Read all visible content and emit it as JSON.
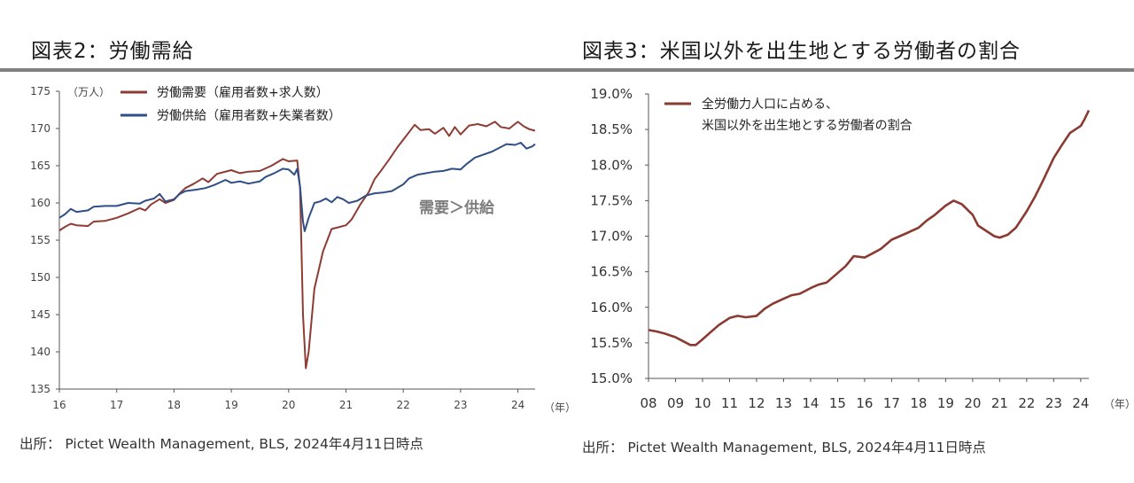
{
  "titles": {
    "left": "図表2：労働需給",
    "right": "図表3：米国以外を出生地とする労働者の割合"
  },
  "sources": {
    "left": "出所： Pictet Wealth Management, BLS, 2024年4月11日時点",
    "right": "出所： Pictet Wealth Management, BLS, 2024年4月11日時点"
  },
  "colors": {
    "demand": "#8e3b33",
    "supply": "#2f4f86",
    "share": "#8a3a31",
    "rule": "#808080"
  },
  "chart_data": [
    {
      "type": "line",
      "title": "図表2：労働需給",
      "unit_label": "（万人）",
      "x_unit_label": "（年）",
      "xlim": [
        2016,
        2024.3
      ],
      "x_ticks": [
        2016,
        2017,
        2018,
        2019,
        2020,
        2021,
        2022,
        2023,
        2024
      ],
      "x_tick_labels": [
        "16",
        "17",
        "18",
        "19",
        "20",
        "21",
        "22",
        "23",
        "24"
      ],
      "ylim": [
        135,
        175
      ],
      "y_ticks": [
        135,
        140,
        145,
        150,
        155,
        160,
        165,
        170,
        175
      ],
      "y_tick_labels": [
        "135",
        "140",
        "145",
        "150",
        "155",
        "160",
        "165",
        "170",
        "175"
      ],
      "annotation": "需要＞供給",
      "legend_position": "top-left",
      "series": [
        {
          "name": "労働需要（雇用者数+求人数）",
          "color": "#8e3b33",
          "points": [
            [
              2016.0,
              156.3
            ],
            [
              2016.1,
              156.8
            ],
            [
              2016.2,
              157.2
            ],
            [
              2016.3,
              157.0
            ],
            [
              2016.5,
              156.9
            ],
            [
              2016.6,
              157.5
            ],
            [
              2016.8,
              157.6
            ],
            [
              2017.0,
              158.0
            ],
            [
              2017.2,
              158.6
            ],
            [
              2017.4,
              159.3
            ],
            [
              2017.5,
              159.0
            ],
            [
              2017.6,
              159.8
            ],
            [
              2017.75,
              160.5
            ],
            [
              2017.85,
              160.0
            ],
            [
              2018.0,
              160.4
            ],
            [
              2018.1,
              161.3
            ],
            [
              2018.2,
              162.0
            ],
            [
              2018.35,
              162.6
            ],
            [
              2018.5,
              163.3
            ],
            [
              2018.6,
              162.8
            ],
            [
              2018.75,
              163.9
            ],
            [
              2019.0,
              164.4
            ],
            [
              2019.15,
              164.0
            ],
            [
              2019.3,
              164.2
            ],
            [
              2019.5,
              164.3
            ],
            [
              2019.7,
              165.0
            ],
            [
              2019.9,
              165.9
            ],
            [
              2020.0,
              165.6
            ],
            [
              2020.15,
              165.7
            ],
            [
              2020.2,
              162.0
            ],
            [
              2020.25,
              145.0
            ],
            [
              2020.3,
              137.8
            ],
            [
              2020.35,
              140.0
            ],
            [
              2020.45,
              148.5
            ],
            [
              2020.6,
              153.5
            ],
            [
              2020.75,
              156.5
            ],
            [
              2020.9,
              156.8
            ],
            [
              2021.0,
              157.0
            ],
            [
              2021.1,
              157.8
            ],
            [
              2021.25,
              159.8
            ],
            [
              2021.4,
              161.5
            ],
            [
              2021.5,
              163.2
            ],
            [
              2021.6,
              164.2
            ],
            [
              2021.75,
              165.8
            ],
            [
              2021.9,
              167.5
            ],
            [
              2022.0,
              168.5
            ],
            [
              2022.1,
              169.5
            ],
            [
              2022.2,
              170.5
            ],
            [
              2022.3,
              169.8
            ],
            [
              2022.45,
              169.9
            ],
            [
              2022.55,
              169.3
            ],
            [
              2022.7,
              170.1
            ],
            [
              2022.8,
              169.0
            ],
            [
              2022.9,
              170.2
            ],
            [
              2023.0,
              169.2
            ],
            [
              2023.15,
              170.4
            ],
            [
              2023.3,
              170.6
            ],
            [
              2023.45,
              170.3
            ],
            [
              2023.6,
              170.9
            ],
            [
              2023.7,
              170.2
            ],
            [
              2023.85,
              170.0
            ],
            [
              2024.0,
              170.9
            ],
            [
              2024.1,
              170.3
            ],
            [
              2024.2,
              169.9
            ],
            [
              2024.3,
              169.7
            ]
          ]
        },
        {
          "name": "労働供給（雇用者数+失業者数）",
          "color": "#2f4f86",
          "points": [
            [
              2016.0,
              158.0
            ],
            [
              2016.1,
              158.5
            ],
            [
              2016.2,
              159.2
            ],
            [
              2016.3,
              158.8
            ],
            [
              2016.5,
              159.0
            ],
            [
              2016.6,
              159.5
            ],
            [
              2016.8,
              159.6
            ],
            [
              2017.0,
              159.6
            ],
            [
              2017.2,
              160.0
            ],
            [
              2017.4,
              159.9
            ],
            [
              2017.5,
              160.3
            ],
            [
              2017.65,
              160.6
            ],
            [
              2017.75,
              161.2
            ],
            [
              2017.85,
              160.2
            ],
            [
              2018.0,
              160.5
            ],
            [
              2018.1,
              161.2
            ],
            [
              2018.2,
              161.6
            ],
            [
              2018.4,
              161.8
            ],
            [
              2018.55,
              162.0
            ],
            [
              2018.7,
              162.4
            ],
            [
              2018.9,
              163.1
            ],
            [
              2019.0,
              162.7
            ],
            [
              2019.15,
              162.9
            ],
            [
              2019.3,
              162.6
            ],
            [
              2019.5,
              162.9
            ],
            [
              2019.6,
              163.5
            ],
            [
              2019.75,
              164.0
            ],
            [
              2019.9,
              164.6
            ],
            [
              2020.0,
              164.5
            ],
            [
              2020.1,
              163.8
            ],
            [
              2020.15,
              164.6
            ],
            [
              2020.2,
              162.2
            ],
            [
              2020.25,
              157.5
            ],
            [
              2020.28,
              156.2
            ],
            [
              2020.35,
              158.0
            ],
            [
              2020.45,
              160.0
            ],
            [
              2020.55,
              160.2
            ],
            [
              2020.65,
              160.6
            ],
            [
              2020.75,
              160.1
            ],
            [
              2020.85,
              160.8
            ],
            [
              2020.95,
              160.5
            ],
            [
              2021.05,
              160.0
            ],
            [
              2021.2,
              160.3
            ],
            [
              2021.35,
              161.0
            ],
            [
              2021.5,
              161.3
            ],
            [
              2021.65,
              161.4
            ],
            [
              2021.8,
              161.6
            ],
            [
              2022.0,
              162.5
            ],
            [
              2022.1,
              163.3
            ],
            [
              2022.25,
              163.8
            ],
            [
              2022.4,
              164.0
            ],
            [
              2022.55,
              164.2
            ],
            [
              2022.7,
              164.3
            ],
            [
              2022.85,
              164.6
            ],
            [
              2023.0,
              164.5
            ],
            [
              2023.1,
              165.2
            ],
            [
              2023.25,
              166.1
            ],
            [
              2023.4,
              166.5
            ],
            [
              2023.55,
              166.9
            ],
            [
              2023.7,
              167.5
            ],
            [
              2023.8,
              167.9
            ],
            [
              2023.95,
              167.8
            ],
            [
              2024.05,
              168.1
            ],
            [
              2024.15,
              167.3
            ],
            [
              2024.25,
              167.6
            ],
            [
              2024.3,
              167.9
            ]
          ]
        }
      ]
    },
    {
      "type": "line",
      "title": "図表3：米国以外を出生地とする労働者の割合",
      "x_unit_label": "（年）",
      "xlim": [
        2008,
        2024.3
      ],
      "x_ticks": [
        2008,
        2009,
        2010,
        2011,
        2012,
        2013,
        2014,
        2015,
        2016,
        2017,
        2018,
        2019,
        2020,
        2021,
        2022,
        2023,
        2024
      ],
      "x_tick_labels": [
        "08",
        "09",
        "10",
        "11",
        "12",
        "13",
        "14",
        "15",
        "16",
        "17",
        "18",
        "19",
        "20",
        "21",
        "22",
        "23",
        "24"
      ],
      "ylim": [
        15.0,
        19.0
      ],
      "y_ticks": [
        15.0,
        15.5,
        16.0,
        16.5,
        17.0,
        17.5,
        18.0,
        18.5,
        19.0
      ],
      "y_tick_labels": [
        "15.0%",
        "15.5%",
        "16.0%",
        "16.5%",
        "17.0%",
        "17.5%",
        "18.0%",
        "18.5%",
        "19.0%"
      ],
      "legend_position": "top-left",
      "series": [
        {
          "name": "全労働力人口に占める、\n米国以外を出生地とする労働者の割合",
          "legend_lines": [
            "全労働力人口に占める、",
            "米国以外を出生地とする労働者の割合"
          ],
          "color": "#8a3a31",
          "points": [
            [
              2008.0,
              15.68
            ],
            [
              2008.3,
              15.66
            ],
            [
              2008.6,
              15.63
            ],
            [
              2009.0,
              15.58
            ],
            [
              2009.3,
              15.52
            ],
            [
              2009.55,
              15.47
            ],
            [
              2009.75,
              15.47
            ],
            [
              2010.0,
              15.55
            ],
            [
              2010.3,
              15.65
            ],
            [
              2010.6,
              15.75
            ],
            [
              2011.0,
              15.85
            ],
            [
              2011.3,
              15.88
            ],
            [
              2011.6,
              15.86
            ],
            [
              2012.0,
              15.88
            ],
            [
              2012.3,
              15.98
            ],
            [
              2012.6,
              16.05
            ],
            [
              2013.0,
              16.12
            ],
            [
              2013.3,
              16.17
            ],
            [
              2013.6,
              16.19
            ],
            [
              2014.0,
              16.27
            ],
            [
              2014.3,
              16.32
            ],
            [
              2014.6,
              16.35
            ],
            [
              2015.0,
              16.48
            ],
            [
              2015.3,
              16.58
            ],
            [
              2015.6,
              16.72
            ],
            [
              2016.0,
              16.7
            ],
            [
              2016.3,
              16.76
            ],
            [
              2016.6,
              16.82
            ],
            [
              2017.0,
              16.95
            ],
            [
              2017.3,
              17.0
            ],
            [
              2017.6,
              17.05
            ],
            [
              2018.0,
              17.12
            ],
            [
              2018.3,
              17.22
            ],
            [
              2018.6,
              17.3
            ],
            [
              2019.0,
              17.43
            ],
            [
              2019.3,
              17.5
            ],
            [
              2019.6,
              17.45
            ],
            [
              2020.0,
              17.3
            ],
            [
              2020.2,
              17.15
            ],
            [
              2020.4,
              17.1
            ],
            [
              2020.6,
              17.05
            ],
            [
              2020.8,
              17.0
            ],
            [
              2021.0,
              16.98
            ],
            [
              2021.3,
              17.02
            ],
            [
              2021.6,
              17.12
            ],
            [
              2022.0,
              17.35
            ],
            [
              2022.3,
              17.55
            ],
            [
              2022.6,
              17.78
            ],
            [
              2023.0,
              18.1
            ],
            [
              2023.3,
              18.28
            ],
            [
              2023.6,
              18.45
            ],
            [
              2024.0,
              18.55
            ],
            [
              2024.15,
              18.65
            ],
            [
              2024.3,
              18.77
            ]
          ]
        }
      ]
    }
  ]
}
